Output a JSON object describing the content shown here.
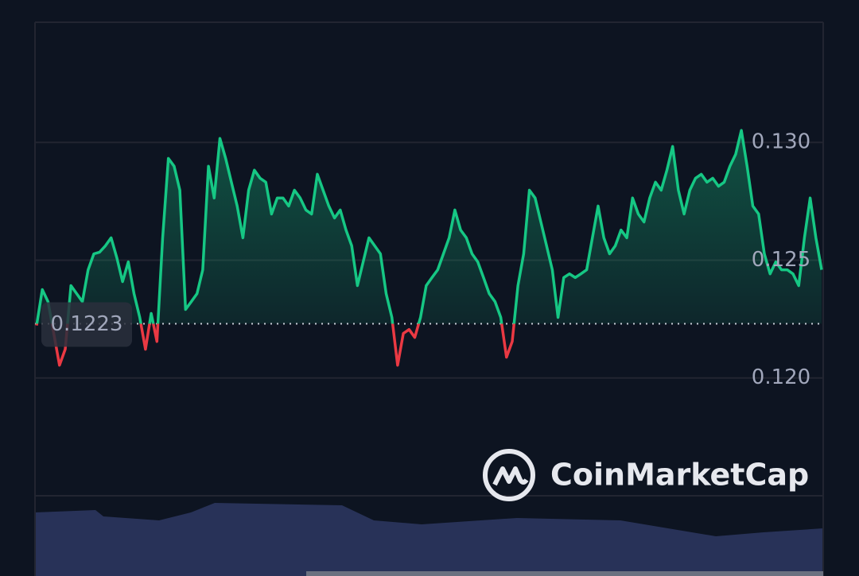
{
  "chart_data": {
    "type": "line",
    "series": [
      {
        "color": "#16c784",
        "below_color": "#ea3943",
        "values": [
          0.12223,
          0.12375,
          0.12324,
          0.12189,
          0.12054,
          0.12122,
          0.12392,
          0.12358,
          0.12324,
          0.12459,
          0.12527,
          0.12534,
          0.12561,
          0.12595,
          0.1251,
          0.12409,
          0.12493,
          0.12358,
          0.12257,
          0.12122,
          0.12274,
          0.12155,
          0.12595,
          0.12932,
          0.12899,
          0.12797,
          0.12291,
          0.12324,
          0.12358,
          0.12459,
          0.12899,
          0.12764,
          0.13017,
          0.12932,
          0.12831,
          0.1273,
          0.12595,
          0.12797,
          0.12882,
          0.12848,
          0.12831,
          0.12696,
          0.12764,
          0.12764,
          0.1273,
          0.12797,
          0.12764,
          0.12713,
          0.12696,
          0.12865,
          0.12797,
          0.1273,
          0.12679,
          0.12713,
          0.12628,
          0.12561,
          0.12392,
          0.12493,
          0.12595,
          0.12561,
          0.12527,
          0.12358,
          0.12257,
          0.12054,
          0.12189,
          0.12206,
          0.12172,
          0.12257,
          0.12392,
          0.12426,
          0.12459,
          0.12527,
          0.12595,
          0.12713,
          0.12628,
          0.12595,
          0.12527,
          0.12493,
          0.12426,
          0.12358,
          0.12324,
          0.12257,
          0.12088,
          0.12155,
          0.12392,
          0.12527,
          0.12797,
          0.12764,
          0.12662,
          0.12561,
          0.12459,
          0.12257,
          0.12426,
          0.12442,
          0.12426,
          0.12442,
          0.12459,
          0.12595,
          0.1273,
          0.12595,
          0.12527,
          0.12561,
          0.12628,
          0.12595,
          0.12764,
          0.12696,
          0.12662,
          0.12764,
          0.12831,
          0.12797,
          0.12882,
          0.12983,
          0.12797,
          0.12696,
          0.12797,
          0.12848,
          0.12865,
          0.12831,
          0.12848,
          0.12814,
          0.12831,
          0.12899,
          0.12949,
          0.13051,
          0.12899,
          0.1273,
          0.12696,
          0.12527,
          0.12442,
          0.12493,
          0.12459,
          0.12459,
          0.12442,
          0.12392,
          0.12595,
          0.12764,
          0.12595,
          0.12459
        ]
      }
    ],
    "baseline": 0.1223,
    "ylim": [
      0.115,
      0.1351
    ],
    "yticks": [
      {
        "value": 0.12,
        "label": "0.120"
      },
      {
        "value": 0.125,
        "label": "0.125"
      },
      {
        "value": 0.13,
        "label": "0.130"
      }
    ],
    "grid": true,
    "watermark": "CoinMarketCap"
  }
}
